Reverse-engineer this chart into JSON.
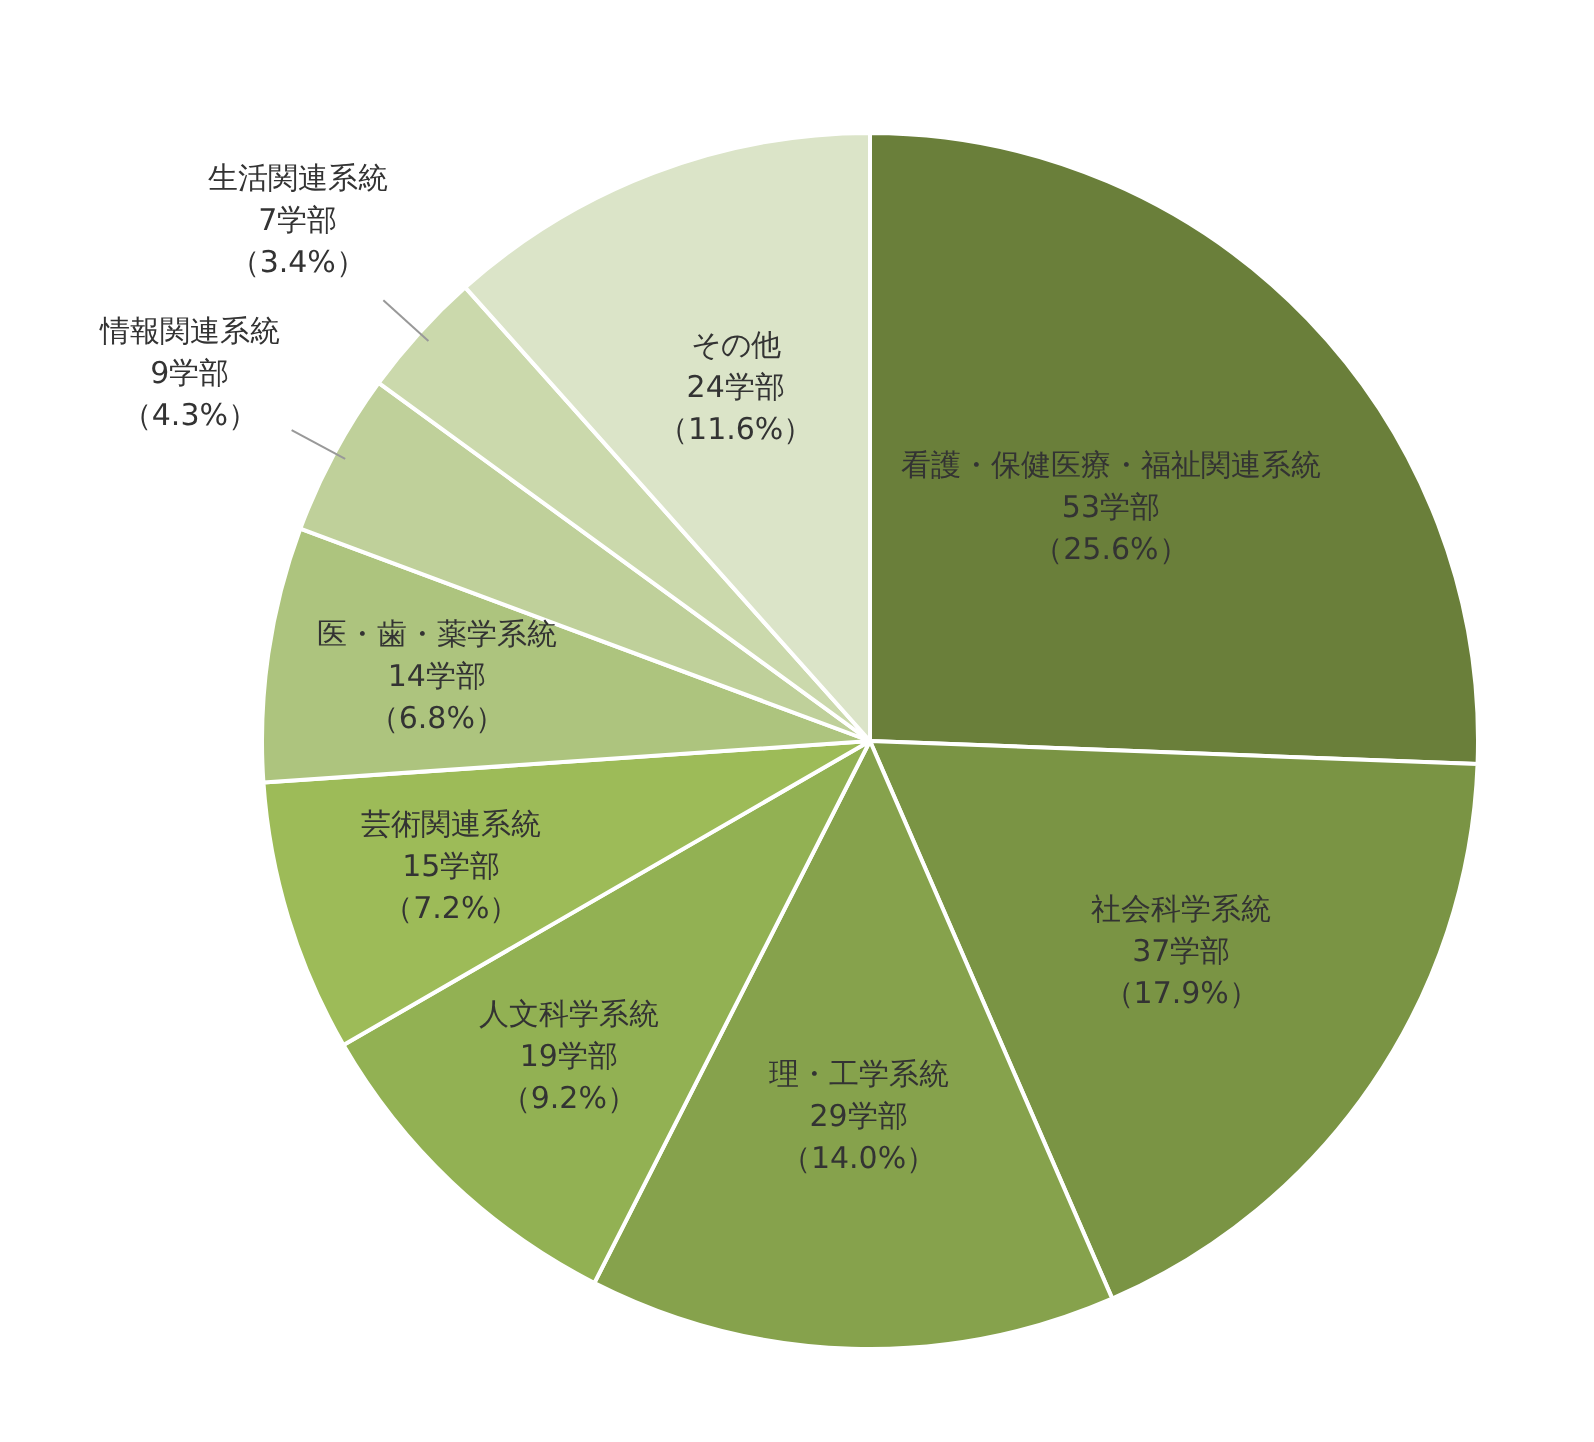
{
  "chart_data": {
    "type": "pie",
    "categories": [
      "看護・保健医療・福祉関連系統",
      "社会科学系統",
      "理・工学系統",
      "人文科学系統",
      "芸術関連系統",
      "医・歯・薬学系統",
      "情報関連系統",
      "生活関連系統",
      "その他"
    ],
    "values": [
      53,
      37,
      29,
      19,
      15,
      14,
      9,
      7,
      24
    ],
    "value_labels": [
      "53学部（25.6%）",
      "37学部（17.9%）",
      "29学部（14.0%）",
      "19学部（9.2%）",
      "15学部（7.2%）",
      "14学部（6.8%）",
      "9学部（4.3%）",
      "7学部（3.4%）",
      "24学部（11.6%）"
    ],
    "colors": [
      "#6a7f3a",
      "#7a9444",
      "#86a24c",
      "#92b153",
      "#9dbb58",
      "#adc47e",
      "#bfd09a",
      "#cbd9ac",
      "#dbe4c8"
    ],
    "legend": false
  }
}
